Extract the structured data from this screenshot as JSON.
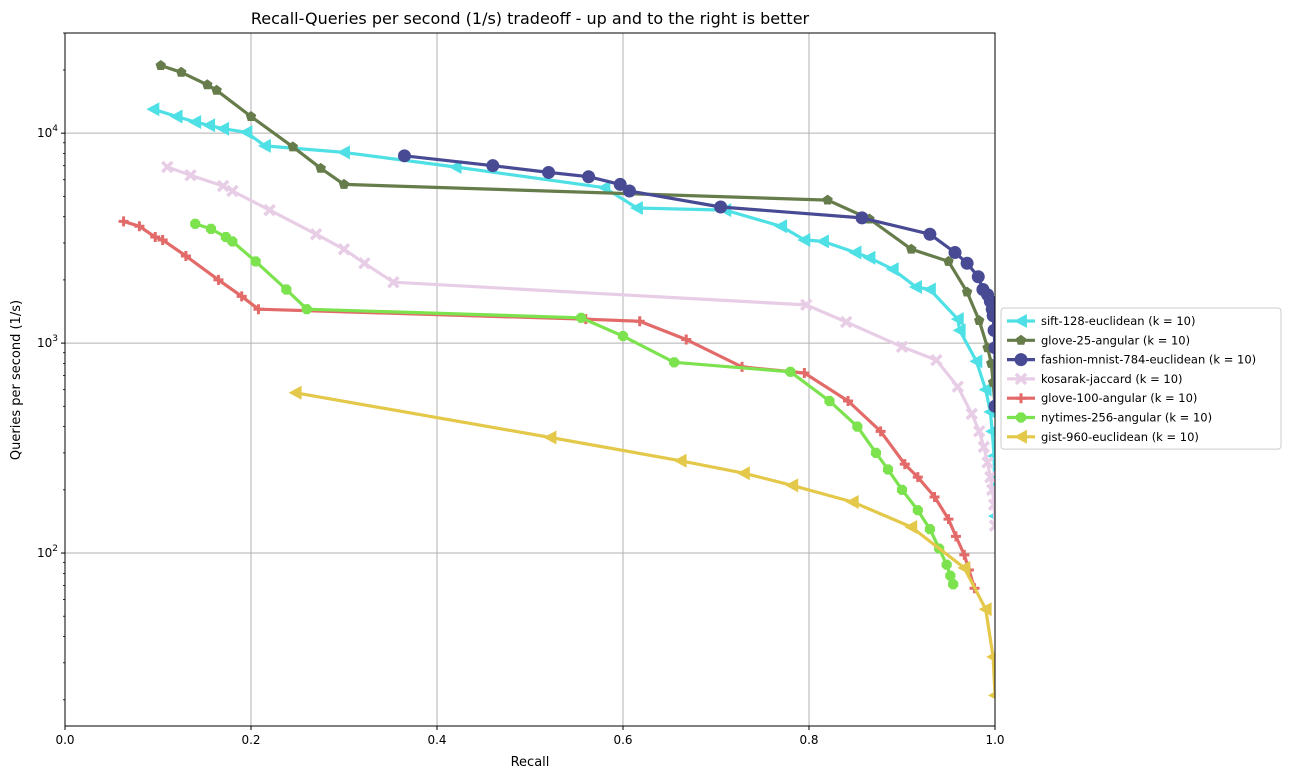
{
  "chart_data": {
    "type": "line",
    "title": "Recall-Queries per second (1/s) tradeoff - up and to the right is better",
    "xlabel": "Recall",
    "ylabel": "Queries per second (1/s)",
    "xlim": [
      0.0,
      1.0
    ],
    "ylim": [
      15,
      30000
    ],
    "yscale": "log",
    "x_ticks": [
      "0.0",
      "0.2",
      "0.4",
      "0.6",
      "0.8",
      "1.0"
    ],
    "y_ticks": [
      "10^2",
      "10^3",
      "10^4"
    ],
    "grid": true,
    "legend_position": "right",
    "series": [
      {
        "name": "sift-128-euclidean (k = 10)",
        "color": "#4ee0e5",
        "marker": "triangle-left",
        "points": [
          [
            0.095,
            13000
          ],
          [
            0.12,
            12000
          ],
          [
            0.14,
            11300
          ],
          [
            0.155,
            10900
          ],
          [
            0.17,
            10500
          ],
          [
            0.195,
            10100
          ],
          [
            0.215,
            8700
          ],
          [
            0.3,
            8100
          ],
          [
            0.42,
            6900
          ],
          [
            0.58,
            5500
          ],
          [
            0.615,
            4400
          ],
          [
            0.71,
            4300
          ],
          [
            0.77,
            3600
          ],
          [
            0.795,
            3100
          ],
          [
            0.815,
            3050
          ],
          [
            0.85,
            2700
          ],
          [
            0.865,
            2550
          ],
          [
            0.89,
            2250
          ],
          [
            0.915,
            1850
          ],
          [
            0.93,
            1800
          ],
          [
            0.96,
            1300
          ],
          [
            0.962,
            1150
          ],
          [
            0.98,
            820
          ],
          [
            0.99,
            600
          ],
          [
            0.995,
            470
          ],
          [
            0.997,
            380
          ],
          [
            0.999,
            290
          ],
          [
            1.0,
            150
          ]
        ]
      },
      {
        "name": "glove-25-angular (k = 10)",
        "color": "#667c4b",
        "marker": "pentagon",
        "points": [
          [
            0.103,
            21000
          ],
          [
            0.125,
            19500
          ],
          [
            0.153,
            17000
          ],
          [
            0.163,
            16000
          ],
          [
            0.2,
            12000
          ],
          [
            0.245,
            8600
          ],
          [
            0.275,
            6800
          ],
          [
            0.3,
            5700
          ],
          [
            0.82,
            4800
          ],
          [
            0.865,
            3900
          ],
          [
            0.91,
            2800
          ],
          [
            0.95,
            2450
          ],
          [
            0.97,
            1750
          ],
          [
            0.983,
            1280
          ],
          [
            0.992,
            950
          ],
          [
            0.996,
            800
          ],
          [
            0.998,
            650
          ],
          [
            1.0,
            500
          ]
        ]
      },
      {
        "name": "fashion-mnist-784-euclidean (k = 10)",
        "color": "#484a94",
        "marker": "circle",
        "points": [
          [
            0.365,
            7800
          ],
          [
            0.46,
            7000
          ],
          [
            0.52,
            6500
          ],
          [
            0.563,
            6200
          ],
          [
            0.597,
            5700
          ],
          [
            0.607,
            5300
          ],
          [
            0.705,
            4450
          ],
          [
            0.857,
            3950
          ],
          [
            0.93,
            3300
          ],
          [
            0.957,
            2700
          ],
          [
            0.97,
            2400
          ],
          [
            0.982,
            2070
          ],
          [
            0.987,
            1800
          ],
          [
            0.992,
            1700
          ],
          [
            0.995,
            1580
          ],
          [
            0.997,
            1450
          ],
          [
            0.998,
            1350
          ],
          [
            0.999,
            1150
          ],
          [
            1.0,
            950
          ],
          [
            1.0,
            500
          ]
        ]
      },
      {
        "name": "kosarak-jaccard (k = 10)",
        "color": "#e8cde6",
        "marker": "x",
        "points": [
          [
            0.11,
            6900
          ],
          [
            0.135,
            6300
          ],
          [
            0.17,
            5600
          ],
          [
            0.18,
            5300
          ],
          [
            0.22,
            4300
          ],
          [
            0.27,
            3300
          ],
          [
            0.3,
            2800
          ],
          [
            0.322,
            2400
          ],
          [
            0.353,
            1950
          ],
          [
            0.797,
            1520
          ],
          [
            0.84,
            1260
          ],
          [
            0.9,
            960
          ],
          [
            0.937,
            830
          ],
          [
            0.96,
            620
          ],
          [
            0.975,
            460
          ],
          [
            0.983,
            380
          ],
          [
            0.988,
            320
          ],
          [
            0.992,
            270
          ],
          [
            0.995,
            230
          ],
          [
            0.997,
            200
          ],
          [
            0.999,
            170
          ],
          [
            1.0,
            135
          ]
        ]
      },
      {
        "name": "glove-100-angular (k = 10)",
        "color": "#e26a68",
        "marker": "plus",
        "points": [
          [
            0.063,
            3800
          ],
          [
            0.08,
            3600
          ],
          [
            0.097,
            3200
          ],
          [
            0.105,
            3100
          ],
          [
            0.13,
            2600
          ],
          [
            0.165,
            2000
          ],
          [
            0.19,
            1670
          ],
          [
            0.208,
            1450
          ],
          [
            0.56,
            1300
          ],
          [
            0.618,
            1270
          ],
          [
            0.668,
            1040
          ],
          [
            0.728,
            770
          ],
          [
            0.795,
            720
          ],
          [
            0.842,
            530
          ],
          [
            0.877,
            380
          ],
          [
            0.903,
            265
          ],
          [
            0.917,
            230
          ],
          [
            0.935,
            185
          ],
          [
            0.95,
            145
          ],
          [
            0.958,
            120
          ],
          [
            0.967,
            98
          ],
          [
            0.972,
            83
          ],
          [
            0.978,
            68
          ]
        ]
      },
      {
        "name": "nytimes-256-angular (k = 10)",
        "color": "#7ce34f",
        "marker": "octagon",
        "points": [
          [
            0.14,
            3700
          ],
          [
            0.157,
            3500
          ],
          [
            0.173,
            3200
          ],
          [
            0.18,
            3050
          ],
          [
            0.205,
            2450
          ],
          [
            0.238,
            1800
          ],
          [
            0.26,
            1450
          ],
          [
            0.555,
            1320
          ],
          [
            0.6,
            1080
          ],
          [
            0.655,
            810
          ],
          [
            0.78,
            730
          ],
          [
            0.822,
            530
          ],
          [
            0.852,
            400
          ],
          [
            0.872,
            300
          ],
          [
            0.885,
            250
          ],
          [
            0.9,
            200
          ],
          [
            0.917,
            160
          ],
          [
            0.93,
            130
          ],
          [
            0.94,
            105
          ],
          [
            0.948,
            88
          ],
          [
            0.952,
            78
          ],
          [
            0.955,
            71
          ]
        ]
      },
      {
        "name": "gist-960-euclidean (k = 10)",
        "color": "#e3c84a",
        "marker": "triangle-left",
        "points": [
          [
            0.248,
            580
          ],
          [
            0.522,
            355
          ],
          [
            0.662,
            275
          ],
          [
            0.73,
            240
          ],
          [
            0.782,
            210
          ],
          [
            0.847,
            175
          ],
          [
            0.91,
            133
          ],
          [
            0.967,
            85
          ],
          [
            0.99,
            54
          ],
          [
            0.998,
            32
          ],
          [
            1.0,
            21
          ]
        ]
      }
    ]
  }
}
